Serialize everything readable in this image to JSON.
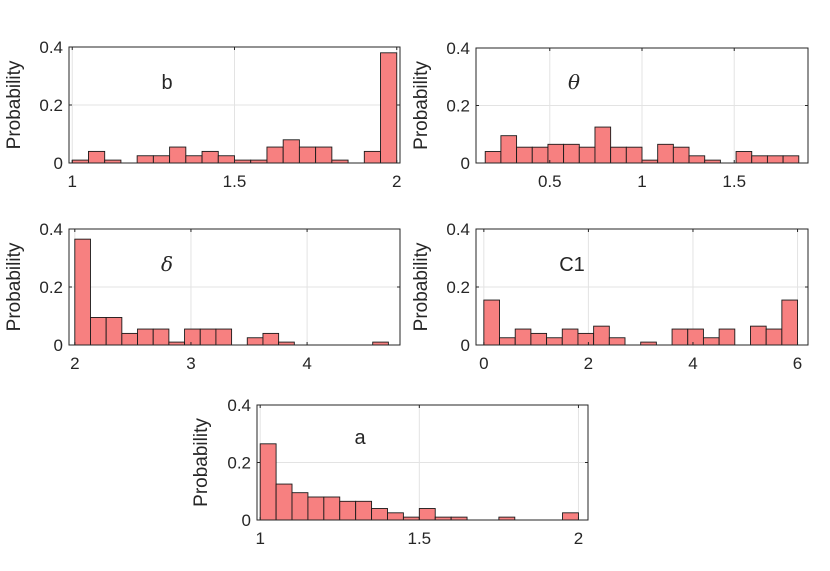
{
  "colors": {
    "bar_fill": "#f78080",
    "bar_edge": "#1a1a1a",
    "axis": "#262626",
    "grid": "#e3e3e3"
  },
  "chart_data": [
    {
      "type": "bar",
      "title": "b",
      "ylabel": "Probability",
      "xlim": [
        0.99,
        2.01
      ],
      "ylim": [
        0,
        0.4
      ],
      "xticks": [
        1,
        1.5,
        2
      ],
      "xtick_labels": [
        "1",
        "1.5",
        "2"
      ],
      "yticks": [
        0,
        0.2,
        0.4
      ],
      "ytick_labels": [
        "0",
        "0.2",
        "0.4"
      ],
      "bin_edges": [
        1.0,
        1.05,
        1.1,
        1.15,
        1.2,
        1.25,
        1.3,
        1.35,
        1.4,
        1.45,
        1.5,
        1.55,
        1.6,
        1.65,
        1.7,
        1.75,
        1.8,
        1.85,
        1.9,
        1.95,
        2.0
      ],
      "values": [
        0.01,
        0.04,
        0.01,
        0.0,
        0.025,
        0.025,
        0.055,
        0.025,
        0.04,
        0.025,
        0.01,
        0.01,
        0.055,
        0.08,
        0.055,
        0.055,
        0.01,
        0.0,
        0.04,
        0.38
      ]
    },
    {
      "type": "bar",
      "title": "θ",
      "ylabel": "Probability",
      "xlim": [
        0.1,
        1.9
      ],
      "ylim": [
        0,
        0.4
      ],
      "xticks": [
        0.5,
        1,
        1.5
      ],
      "xtick_labels": [
        "0.5",
        "1",
        "1.5"
      ],
      "yticks": [
        0,
        0.2,
        0.4
      ],
      "ytick_labels": [
        "0",
        "0.2",
        "0.4"
      ],
      "bin_edges": [
        0.15,
        0.235,
        0.32,
        0.405,
        0.49,
        0.575,
        0.66,
        0.745,
        0.83,
        0.915,
        1.0,
        1.085,
        1.17,
        1.255,
        1.34,
        1.425,
        1.51,
        1.595,
        1.68,
        1.765,
        1.85
      ],
      "values": [
        0.04,
        0.095,
        0.055,
        0.055,
        0.065,
        0.065,
        0.055,
        0.125,
        0.055,
        0.055,
        0.01,
        0.065,
        0.055,
        0.025,
        0.01,
        0.0,
        0.04,
        0.025,
        0.025,
        0.025
      ]
    },
    {
      "type": "bar",
      "title": "δ",
      "ylabel": "Probability",
      "xlim": [
        1.95,
        4.8
      ],
      "ylim": [
        0,
        0.4
      ],
      "xticks": [
        2,
        3,
        4
      ],
      "xtick_labels": [
        "2",
        "3",
        "4"
      ],
      "yticks": [
        0,
        0.2,
        0.4
      ],
      "ytick_labels": [
        "0",
        "0.2",
        "0.4"
      ],
      "bin_edges": [
        2.0,
        2.135,
        2.27,
        2.405,
        2.54,
        2.675,
        2.81,
        2.945,
        3.08,
        3.215,
        3.35,
        3.485,
        3.62,
        3.755,
        3.89,
        4.025,
        4.16,
        4.295,
        4.43,
        4.565,
        4.7
      ],
      "values": [
        0.365,
        0.095,
        0.095,
        0.04,
        0.055,
        0.055,
        0.01,
        0.055,
        0.055,
        0.055,
        0.0,
        0.025,
        0.04,
        0.01,
        0.0,
        0.0,
        0.0,
        0.0,
        0.0,
        0.01
      ]
    },
    {
      "type": "bar",
      "title": "C1",
      "ylabel": "Probability",
      "xlim": [
        -0.15,
        6.2
      ],
      "ylim": [
        0,
        0.4
      ],
      "xticks": [
        0,
        2,
        4,
        6
      ],
      "xtick_labels": [
        "0",
        "2",
        "4",
        "6"
      ],
      "yticks": [
        0,
        0.2,
        0.4
      ],
      "ytick_labels": [
        "0",
        "0.2",
        "0.4"
      ],
      "bin_edges": [
        0.0,
        0.3,
        0.6,
        0.9,
        1.2,
        1.5,
        1.8,
        2.1,
        2.4,
        2.7,
        3.0,
        3.3,
        3.6,
        3.9,
        4.2,
        4.5,
        4.8,
        5.1,
        5.4,
        5.7,
        6.0
      ],
      "values": [
        0.155,
        0.025,
        0.055,
        0.04,
        0.025,
        0.055,
        0.04,
        0.065,
        0.025,
        0.0,
        0.01,
        0.0,
        0.055,
        0.055,
        0.025,
        0.055,
        0.0,
        0.065,
        0.055,
        0.155
      ]
    },
    {
      "type": "bar",
      "title": "a",
      "ylabel": "Probability",
      "xlim": [
        0.99,
        2.03
      ],
      "ylim": [
        0,
        0.4
      ],
      "xticks": [
        1,
        1.5,
        2
      ],
      "xtick_labels": [
        "1",
        "1.5",
        "2"
      ],
      "yticks": [
        0,
        0.2,
        0.4
      ],
      "ytick_labels": [
        "0",
        "0.2",
        "0.4"
      ],
      "bin_edges": [
        1.0,
        1.05,
        1.1,
        1.15,
        1.2,
        1.25,
        1.3,
        1.35,
        1.4,
        1.45,
        1.5,
        1.55,
        1.6,
        1.65,
        1.7,
        1.75,
        1.8,
        1.85,
        1.9,
        1.95,
        2.0
      ],
      "values": [
        0.265,
        0.125,
        0.095,
        0.08,
        0.08,
        0.065,
        0.065,
        0.04,
        0.025,
        0.01,
        0.04,
        0.01,
        0.01,
        0.0,
        0.0,
        0.01,
        0.0,
        0.0,
        0.0,
        0.025
      ]
    }
  ]
}
